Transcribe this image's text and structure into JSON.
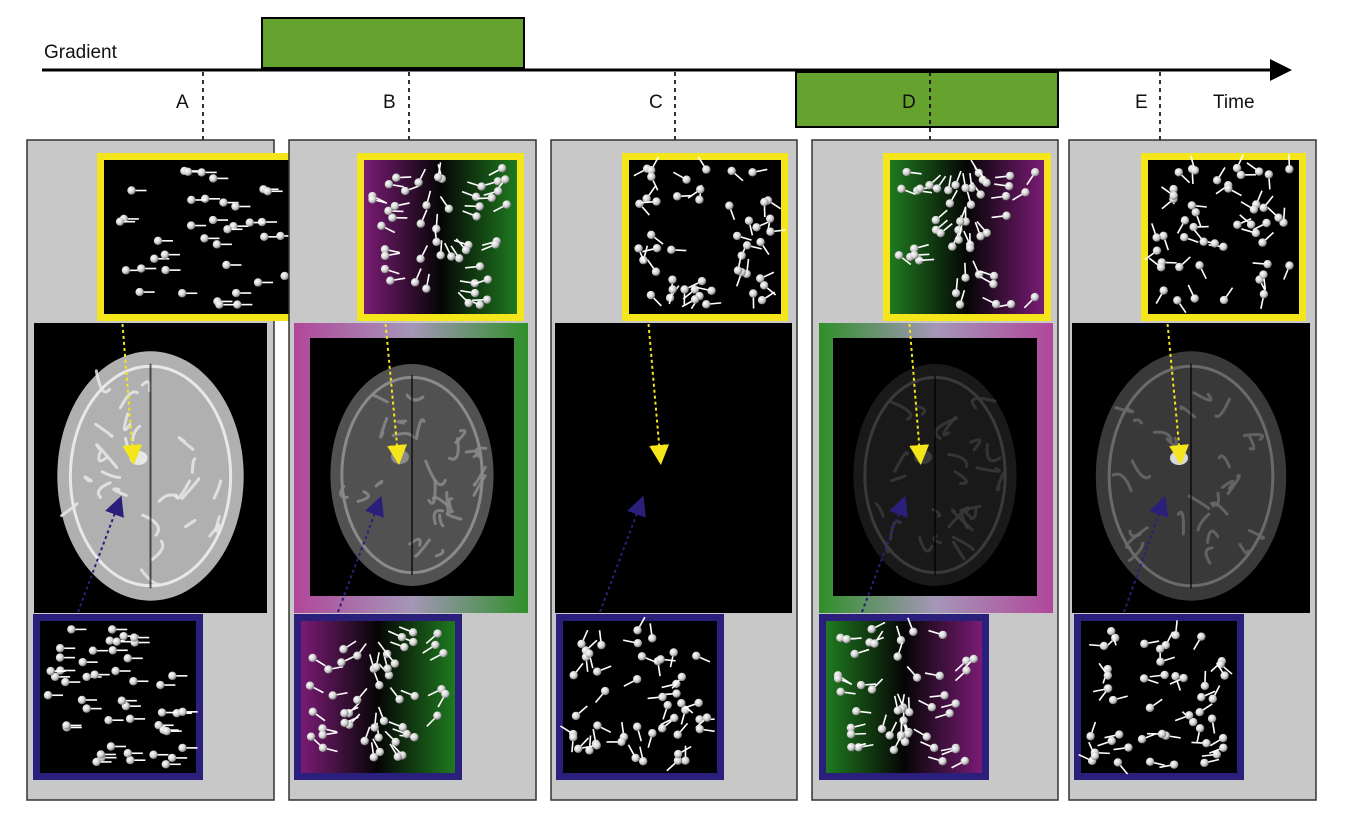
{
  "axis": {
    "gradient_label": "Gradient",
    "time_label": "Time"
  },
  "colors": {
    "pulse": "#66a22e",
    "yellow": "#f5e61c",
    "navy": "#2a1f7a",
    "panel": "#c8c8c8",
    "magenta": "#b0479a",
    "green": "#2f8f2a"
  },
  "panels": [
    {
      "label": "A",
      "phase": "aligned",
      "ring": "none",
      "brain": "bright"
    },
    {
      "label": "B",
      "phase": "dephased",
      "ring": "magenta-green",
      "brain": "medium"
    },
    {
      "label": "C",
      "phase": "random",
      "ring": "none",
      "brain": "none"
    },
    {
      "label": "D",
      "phase": "rephasing",
      "ring": "green-magenta",
      "brain": "dark"
    },
    {
      "label": "E",
      "phase": "random",
      "ring": "none",
      "brain": "dwi"
    }
  ],
  "inset_legend": {
    "yellow_inset_icon": "spin-ensemble-icon",
    "navy_inset_icon": "spin-ensemble-icon"
  }
}
